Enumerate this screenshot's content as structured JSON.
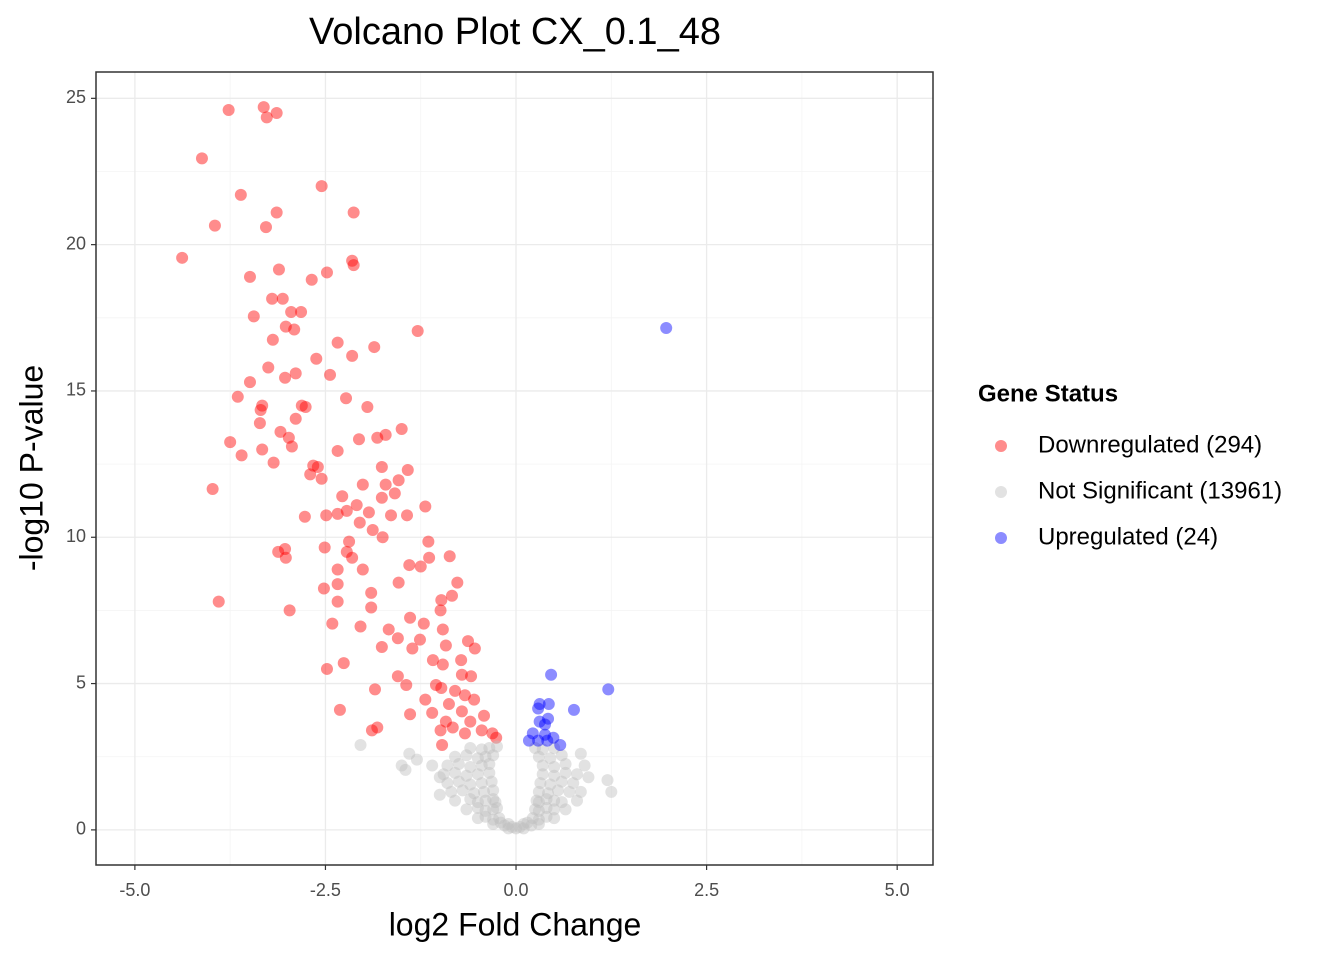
{
  "chart_data": {
    "type": "scatter",
    "title": "Volcano Plot CX_0.1_48",
    "xlabel": "log2 Fold Change",
    "ylabel": "-log10 P-value",
    "legend_title": "Gene Status",
    "legend": "right",
    "grid": true,
    "xlim": [
      -5.51,
      5.47
    ],
    "ylim": [
      -1.2,
      25.9
    ],
    "xticks": [
      {
        "value": -5,
        "label": "-5.0"
      },
      {
        "value": -2.5,
        "label": "-2.5"
      },
      {
        "value": 0,
        "label": "0.0"
      },
      {
        "value": 2.5,
        "label": "2.5"
      },
      {
        "value": 5,
        "label": "5.0"
      }
    ],
    "yticks": [
      0,
      5,
      10,
      15,
      20,
      25
    ],
    "series": [
      {
        "name": "Downregulated (294)",
        "color": "#ff0000",
        "x": [
          -3.77,
          -3.31,
          -3.14,
          -3.27,
          -4.12,
          -2.55,
          -3.61,
          -2.13,
          -3.14,
          -3.95,
          -3.28,
          -4.38,
          -2.15,
          -2.13,
          -3.11,
          -3.49,
          -2.48,
          -2.68,
          -3.2,
          -3.06,
          -3.44,
          -2.95,
          -2.82,
          -2.91,
          -1.29,
          -3.02,
          -3.19,
          -2.34,
          -2.15,
          -2.62,
          -1.86,
          -3.25,
          -2.89,
          -3.03,
          -2.44,
          -3.49,
          -3.65,
          -2.23,
          -2.81,
          -3.33,
          -1.95,
          -2.76,
          -3.35,
          -2.89,
          -3.36,
          -3.09,
          -1.5,
          -1.82,
          -3.75,
          -2.98,
          -2.06,
          -1.71,
          -2.94,
          -3.33,
          -3.6,
          -2.34,
          -3.18,
          -2.66,
          -2.6,
          -1.76,
          -1.42,
          -2.7,
          -2.55,
          -1.54,
          -1.71,
          -3.98,
          -2.01,
          -1.59,
          -2.28,
          -1.76,
          -2.09,
          -1.19,
          -2.22,
          -1.93,
          -2.77,
          -2.49,
          -1.64,
          -1.43,
          -2.05,
          -2.34,
          -1.88,
          -2.19,
          -1.75,
          -1.15,
          -3.03,
          -2.51,
          -2.22,
          -3.12,
          -1.14,
          -2.15,
          -0.87,
          -3.02,
          -1.4,
          -2.01,
          -2.34,
          -1.25,
          -1.54,
          -2.34,
          -0.77,
          -2.52,
          -1.9,
          -3.9,
          -0.84,
          -0.98,
          -2.34,
          -2.97,
          -1.9,
          -0.99,
          -1.39,
          -2.41,
          -1.21,
          -2.04,
          -1.67,
          -0.96,
          -1.55,
          -1.26,
          -0.63,
          -1.76,
          -0.92,
          -1.36,
          -0.54,
          -1.09,
          -0.72,
          -0.96,
          -2.26,
          -2.48,
          -1.55,
          -0.71,
          -0.59,
          -1.05,
          -0.98,
          -1.85,
          -1.44,
          -0.8,
          -0.67,
          -1.19,
          -0.55,
          -0.88,
          -2.31,
          -1.39,
          -1.1,
          -0.71,
          -0.42,
          -0.92,
          -0.6,
          -0.83,
          -1.82,
          -1.89,
          -0.99,
          -0.45,
          -0.67,
          -0.31,
          -0.97,
          -0.26
        ],
        "values": [
          24.6,
          24.7,
          24.5,
          24.35,
          22.95,
          22.0,
          21.7,
          21.1,
          21.1,
          20.65,
          20.6,
          19.55,
          19.45,
          19.3,
          19.15,
          18.9,
          19.05,
          18.8,
          18.15,
          18.15,
          17.55,
          17.7,
          17.7,
          17.1,
          17.05,
          17.2,
          16.75,
          16.65,
          16.2,
          16.1,
          16.5,
          15.8,
          15.6,
          15.45,
          15.55,
          15.3,
          14.8,
          14.75,
          14.5,
          14.5,
          14.45,
          14.45,
          14.35,
          14.05,
          13.9,
          13.6,
          13.7,
          13.4,
          13.25,
          13.4,
          13.35,
          13.5,
          13.1,
          13.0,
          12.8,
          12.95,
          12.55,
          12.45,
          12.4,
          12.4,
          12.3,
          12.15,
          12.0,
          11.95,
          11.8,
          11.65,
          11.8,
          11.5,
          11.4,
          11.35,
          11.1,
          11.05,
          10.9,
          10.85,
          10.7,
          10.75,
          10.75,
          10.75,
          10.5,
          10.8,
          10.25,
          9.85,
          10.0,
          9.85,
          9.6,
          9.65,
          9.5,
          9.5,
          9.3,
          9.3,
          9.35,
          9.3,
          9.05,
          8.9,
          8.9,
          9.0,
          8.45,
          8.4,
          8.45,
          8.25,
          8.1,
          7.8,
          8.0,
          7.85,
          7.8,
          7.5,
          7.6,
          7.5,
          7.25,
          7.05,
          7.05,
          6.95,
          6.85,
          6.85,
          6.55,
          6.5,
          6.45,
          6.25,
          6.3,
          6.2,
          6.2,
          5.8,
          5.8,
          5.65,
          5.7,
          5.5,
          5.25,
          5.3,
          5.25,
          4.95,
          4.85,
          4.8,
          4.95,
          4.75,
          4.6,
          4.45,
          4.45,
          4.3,
          4.1,
          3.95,
          4.0,
          4.05,
          3.9,
          3.7,
          3.7,
          3.5,
          3.5,
          3.4,
          3.4,
          3.4,
          3.3,
          3.3,
          2.9,
          3.15
        ]
      },
      {
        "name": "Not Significant (13961)",
        "color": "#bebebe",
        "x": [
          -0.1,
          -0.05,
          0,
          0.05,
          0.1,
          -0.3,
          -0.2,
          -0.15,
          -0.1,
          0.1,
          0.15,
          0.2,
          0.3,
          -0.5,
          -0.4,
          -0.3,
          -0.22,
          0.22,
          0.3,
          0.4,
          0.5,
          -0.65,
          -0.5,
          -0.4,
          -0.3,
          -0.25,
          0.25,
          0.3,
          0.4,
          0.5,
          0.65,
          -0.8,
          -0.6,
          -0.5,
          -0.4,
          -0.3,
          -0.27,
          0.27,
          0.3,
          0.4,
          0.5,
          0.6,
          0.8,
          -0.85,
          -0.7,
          -0.55,
          -0.42,
          -0.3,
          0.3,
          0.42,
          0.55,
          0.7,
          0.85,
          -0.9,
          -0.75,
          -0.6,
          -0.45,
          -0.32,
          0.32,
          0.45,
          0.6,
          0.75,
          -0.95,
          -0.8,
          -0.65,
          -0.5,
          -0.35,
          0.35,
          0.5,
          0.65,
          0.8,
          -0.9,
          -0.75,
          -0.6,
          -0.45,
          -0.35,
          0.35,
          0.5,
          0.65,
          -0.8,
          -0.65,
          -0.5,
          -0.4,
          -0.3,
          0.3,
          0.45,
          0.6,
          -0.6,
          -0.45,
          -0.35,
          -0.25,
          0.25,
          0.35,
          0.5,
          -2.04,
          -1.5,
          -1.4,
          -1.3,
          -1.1,
          -1.0,
          -1.0,
          1.2,
          1.25,
          0.85,
          0.9,
          0.95,
          -1.45
        ],
        "values": [
          0.05,
          0.1,
          0.05,
          0.1,
          0.05,
          0.2,
          0.25,
          0.15,
          0.2,
          0.2,
          0.25,
          0.15,
          0.2,
          0.4,
          0.45,
          0.35,
          0.4,
          0.4,
          0.35,
          0.45,
          0.4,
          0.7,
          0.75,
          0.65,
          0.7,
          0.75,
          0.7,
          0.65,
          0.75,
          0.7,
          0.7,
          1.0,
          1.05,
          0.95,
          1.0,
          1.05,
          0.95,
          1.0,
          0.95,
          1.05,
          1.0,
          0.95,
          1.0,
          1.3,
          1.35,
          1.25,
          1.3,
          1.35,
          1.3,
          1.25,
          1.35,
          1.3,
          1.3,
          1.6,
          1.65,
          1.55,
          1.6,
          1.65,
          1.6,
          1.55,
          1.65,
          1.6,
          1.9,
          1.95,
          1.85,
          1.9,
          1.95,
          1.9,
          1.85,
          1.95,
          1.9,
          2.2,
          2.25,
          2.15,
          2.2,
          2.25,
          2.2,
          2.15,
          2.25,
          2.5,
          2.55,
          2.45,
          2.5,
          2.55,
          2.5,
          2.45,
          2.55,
          2.8,
          2.75,
          2.8,
          2.85,
          2.8,
          2.75,
          2.8,
          2.9,
          2.2,
          2.6,
          2.4,
          2.2,
          1.8,
          1.2,
          1.7,
          1.3,
          2.6,
          2.2,
          1.8,
          2.05
        ]
      },
      {
        "name": "Upregulated (24)",
        "color": "#0000ff",
        "x": [
          1.97,
          0.46,
          1.21,
          0.31,
          0.43,
          0.29,
          0.76,
          0.42,
          0.31,
          0.38,
          0.22,
          0.38,
          0.49,
          0.29,
          0.41,
          0.58,
          0.17
        ],
        "values": [
          17.15,
          5.3,
          4.8,
          4.3,
          4.3,
          4.15,
          4.1,
          3.8,
          3.7,
          3.6,
          3.3,
          3.25,
          3.15,
          3.05,
          3.05,
          2.9,
          3.05
        ]
      }
    ]
  }
}
